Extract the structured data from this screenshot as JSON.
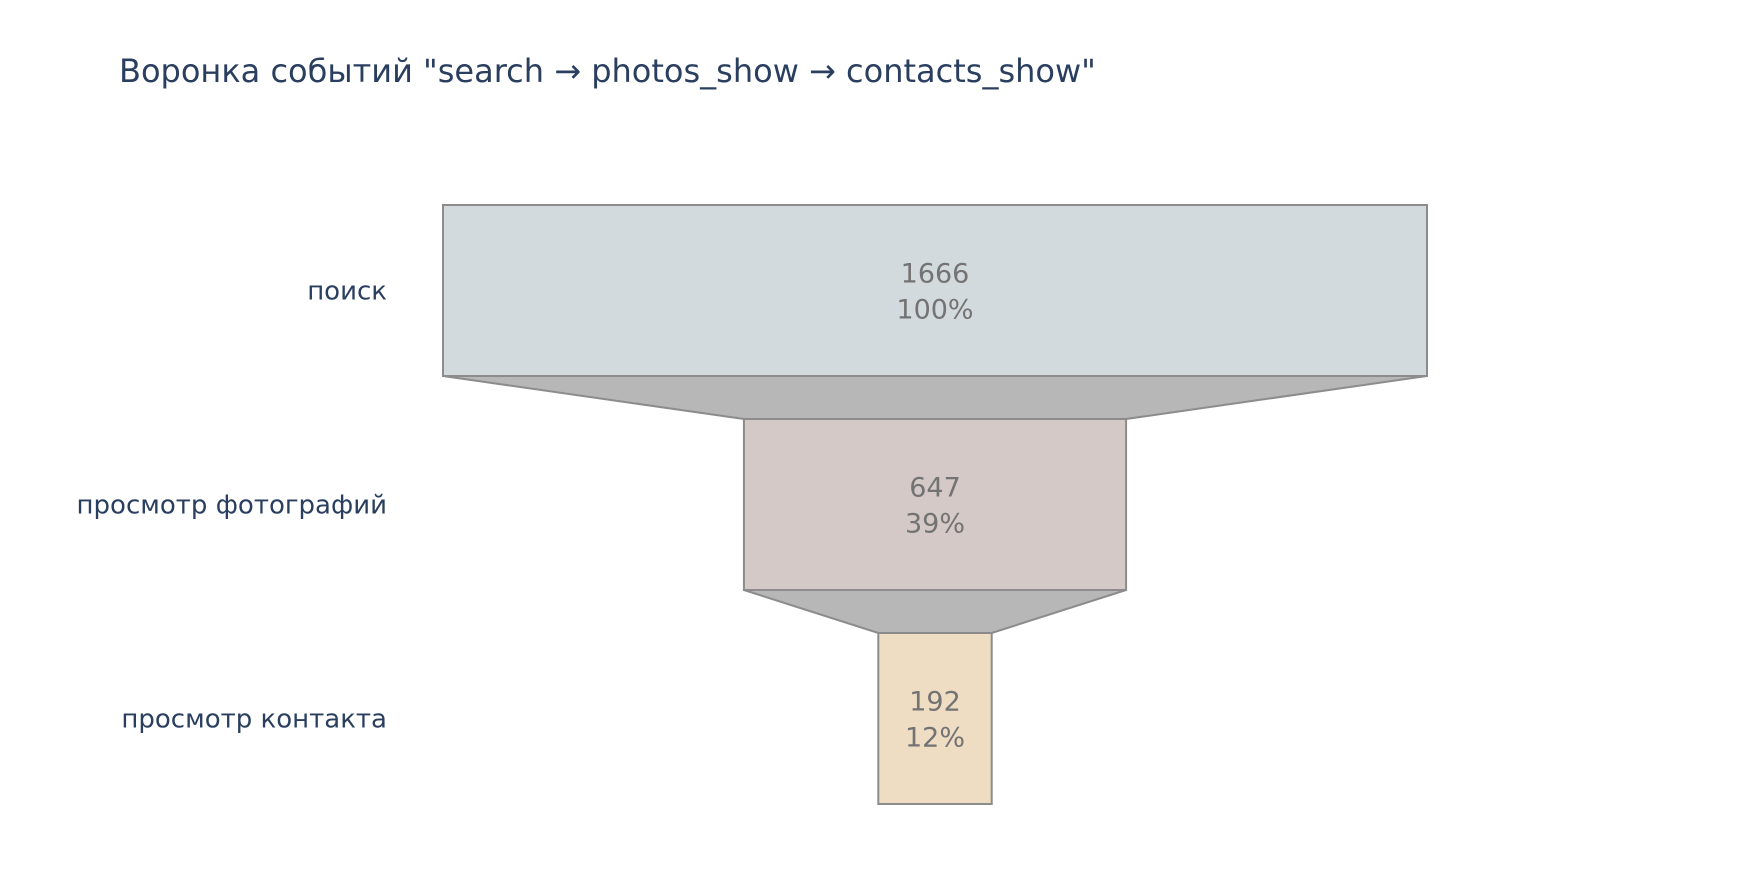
{
  "chart_data": {
    "type": "funnel",
    "title": "Воронка событий \"search → photos_show → contacts_show\"",
    "categories": [
      "поиск",
      "просмотр фотографий",
      "просмотр контакта"
    ],
    "values": [
      1666,
      647,
      192
    ],
    "percent_labels": [
      "100%",
      "39%",
      "12%"
    ],
    "colors": [
      "#d3dadd",
      "#d4c9c6",
      "#eedcc3"
    ],
    "connector_color": "#b7b7b7",
    "outline_color": "#8c8c8c"
  }
}
